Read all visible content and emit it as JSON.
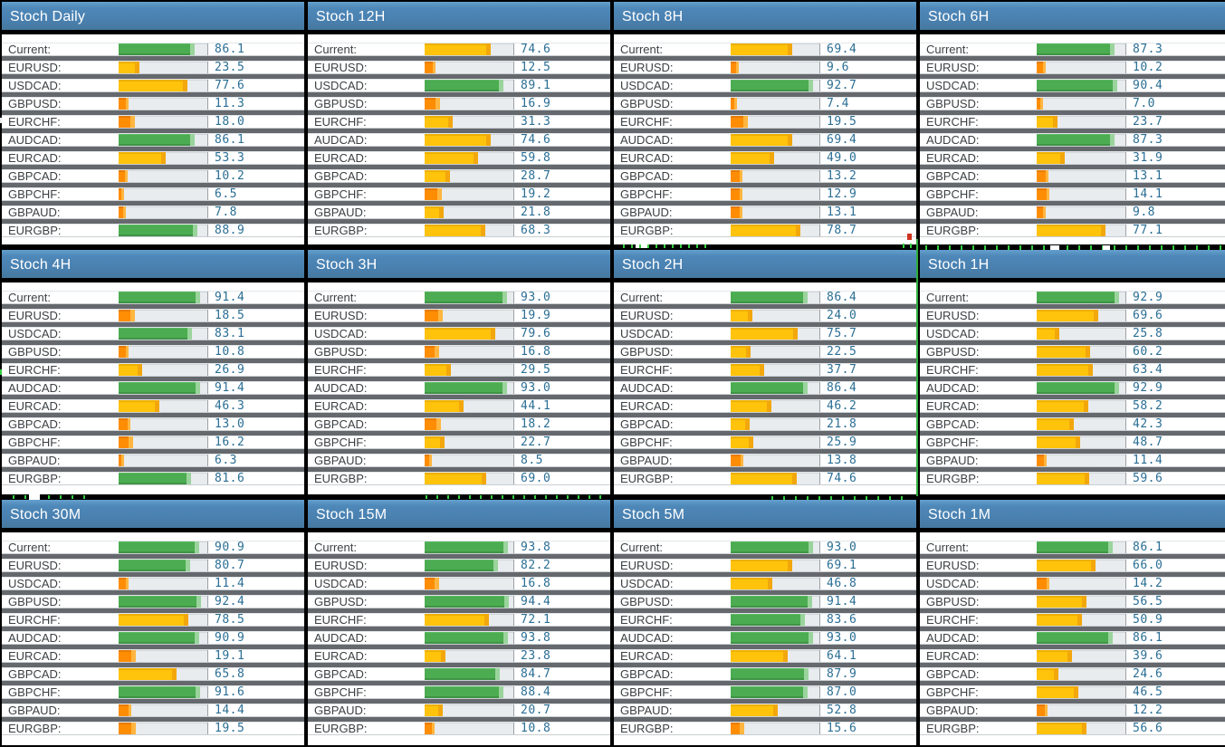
{
  "colors": {
    "header_bg": "#4A81B1",
    "bar_green": "#4CAC51",
    "bar_yellow": "#FFC30B",
    "bar_orange": "#FF8D04",
    "bar_track": "#E8ECEF",
    "row_gap_gray": "#65696D",
    "value_text": "#2A6E94",
    "label_text": "#3C4144",
    "tick_green": "#34CF40"
  },
  "panels": [
    {
      "title": "Stoch Daily",
      "rows": [
        {
          "label": "Current:",
          "value": "86.1"
        },
        {
          "label": "EURUSD:",
          "value": "23.5"
        },
        {
          "label": "USDCAD:",
          "value": "77.6"
        },
        {
          "label": "GBPUSD:",
          "value": "11.3"
        },
        {
          "label": "EURCHF:",
          "value": "18.0"
        },
        {
          "label": "AUDCAD:",
          "value": "86.1"
        },
        {
          "label": "EURCAD:",
          "value": "53.3"
        },
        {
          "label": "GBPCAD:",
          "value": "10.2"
        },
        {
          "label": "GBPCHF:",
          "value": "6.5"
        },
        {
          "label": "GBPAUD:",
          "value": "7.8"
        },
        {
          "label": "EURGBP:",
          "value": "88.9"
        }
      ]
    },
    {
      "title": "Stoch 12H",
      "rows": [
        {
          "label": "Current:",
          "value": "74.6"
        },
        {
          "label": "EURUSD:",
          "value": "12.5"
        },
        {
          "label": "USDCAD:",
          "value": "89.1"
        },
        {
          "label": "GBPUSD:",
          "value": "16.9"
        },
        {
          "label": "EURCHF:",
          "value": "31.3"
        },
        {
          "label": "AUDCAD:",
          "value": "74.6"
        },
        {
          "label": "EURCAD:",
          "value": "59.8"
        },
        {
          "label": "GBPCAD:",
          "value": "28.7"
        },
        {
          "label": "GBPCHF:",
          "value": "19.2"
        },
        {
          "label": "GBPAUD:",
          "value": "21.8"
        },
        {
          "label": "EURGBP:",
          "value": "68.3"
        }
      ]
    },
    {
      "title": "Stoch 8H",
      "rows": [
        {
          "label": "Current:",
          "value": "69.4"
        },
        {
          "label": "EURUSD:",
          "value": "9.6"
        },
        {
          "label": "USDCAD:",
          "value": "92.7"
        },
        {
          "label": "GBPUSD:",
          "value": "7.4"
        },
        {
          "label": "EURCHF:",
          "value": "19.5"
        },
        {
          "label": "AUDCAD:",
          "value": "69.4"
        },
        {
          "label": "EURCAD:",
          "value": "49.0"
        },
        {
          "label": "GBPCAD:",
          "value": "13.2"
        },
        {
          "label": "GBPCHF:",
          "value": "12.9"
        },
        {
          "label": "GBPAUD:",
          "value": "13.1"
        },
        {
          "label": "EURGBP:",
          "value": "78.7"
        }
      ]
    },
    {
      "title": "Stoch 6H",
      "rows": [
        {
          "label": "Current:",
          "value": "87.3"
        },
        {
          "label": "EURUSD:",
          "value": "10.2"
        },
        {
          "label": "USDCAD:",
          "value": "90.4"
        },
        {
          "label": "GBPUSD:",
          "value": "7.0"
        },
        {
          "label": "EURCHF:",
          "value": "23.7"
        },
        {
          "label": "AUDCAD:",
          "value": "87.3"
        },
        {
          "label": "EURCAD:",
          "value": "31.9"
        },
        {
          "label": "GBPCAD:",
          "value": "13.1"
        },
        {
          "label": "GBPCHF:",
          "value": "14.1"
        },
        {
          "label": "GBPAUD:",
          "value": "9.8"
        },
        {
          "label": "EURGBP:",
          "value": "77.1"
        }
      ]
    },
    {
      "title": "Stoch 4H",
      "rows": [
        {
          "label": "Current:",
          "value": "91.4"
        },
        {
          "label": "EURUSD:",
          "value": "18.5"
        },
        {
          "label": "USDCAD:",
          "value": "83.1"
        },
        {
          "label": "GBPUSD:",
          "value": "10.8"
        },
        {
          "label": "EURCHF:",
          "value": "26.9"
        },
        {
          "label": "AUDCAD:",
          "value": "91.4"
        },
        {
          "label": "EURCAD:",
          "value": "46.3"
        },
        {
          "label": "GBPCAD:",
          "value": "13.0"
        },
        {
          "label": "GBPCHF:",
          "value": "16.2"
        },
        {
          "label": "GBPAUD:",
          "value": "6.3"
        },
        {
          "label": "EURGBP:",
          "value": "81.6"
        }
      ]
    },
    {
      "title": "Stoch 3H",
      "rows": [
        {
          "label": "Current:",
          "value": "93.0"
        },
        {
          "label": "EURUSD:",
          "value": "19.9"
        },
        {
          "label": "USDCAD:",
          "value": "79.6"
        },
        {
          "label": "GBPUSD:",
          "value": "16.8"
        },
        {
          "label": "EURCHF:",
          "value": "29.5"
        },
        {
          "label": "AUDCAD:",
          "value": "93.0"
        },
        {
          "label": "EURCAD:",
          "value": "44.1"
        },
        {
          "label": "GBPCAD:",
          "value": "18.2"
        },
        {
          "label": "GBPCHF:",
          "value": "22.7"
        },
        {
          "label": "GBPAUD:",
          "value": "8.5"
        },
        {
          "label": "EURGBP:",
          "value": "69.0"
        }
      ]
    },
    {
      "title": "Stoch 2H",
      "rows": [
        {
          "label": "Current:",
          "value": "86.4"
        },
        {
          "label": "EURUSD:",
          "value": "24.0"
        },
        {
          "label": "USDCAD:",
          "value": "75.7"
        },
        {
          "label": "GBPUSD:",
          "value": "22.5"
        },
        {
          "label": "EURCHF:",
          "value": "37.7"
        },
        {
          "label": "AUDCAD:",
          "value": "86.4"
        },
        {
          "label": "EURCAD:",
          "value": "46.2"
        },
        {
          "label": "GBPCAD:",
          "value": "21.8"
        },
        {
          "label": "GBPCHF:",
          "value": "25.9"
        },
        {
          "label": "GBPAUD:",
          "value": "13.8"
        },
        {
          "label": "EURGBP:",
          "value": "74.6"
        }
      ]
    },
    {
      "title": "Stoch 1H",
      "rows": [
        {
          "label": "Current:",
          "value": "92.9"
        },
        {
          "label": "EURUSD:",
          "value": "69.6"
        },
        {
          "label": "USDCAD:",
          "value": "25.8"
        },
        {
          "label": "GBPUSD:",
          "value": "60.2"
        },
        {
          "label": "EURCHF:",
          "value": "63.4"
        },
        {
          "label": "AUDCAD:",
          "value": "92.9"
        },
        {
          "label": "EURCAD:",
          "value": "58.2"
        },
        {
          "label": "GBPCAD:",
          "value": "42.3"
        },
        {
          "label": "GBPCHF:",
          "value": "48.7"
        },
        {
          "label": "GBPAUD:",
          "value": "11.4"
        },
        {
          "label": "EURGBP:",
          "value": "59.6"
        }
      ]
    },
    {
      "title": "Stoch 30M",
      "rows": [
        {
          "label": "Current:",
          "value": "90.9"
        },
        {
          "label": "EURUSD:",
          "value": "80.7"
        },
        {
          "label": "USDCAD:",
          "value": "11.4"
        },
        {
          "label": "GBPUSD:",
          "value": "92.4"
        },
        {
          "label": "EURCHF:",
          "value": "78.5"
        },
        {
          "label": "AUDCAD:",
          "value": "90.9"
        },
        {
          "label": "EURCAD:",
          "value": "19.1"
        },
        {
          "label": "GBPCAD:",
          "value": "65.8"
        },
        {
          "label": "GBPCHF:",
          "value": "91.6"
        },
        {
          "label": "GBPAUD:",
          "value": "14.4"
        },
        {
          "label": "EURGBP:",
          "value": "19.5"
        }
      ]
    },
    {
      "title": "Stoch 15M",
      "rows": [
        {
          "label": "Current:",
          "value": "93.8"
        },
        {
          "label": "EURUSD:",
          "value": "82.2"
        },
        {
          "label": "USDCAD:",
          "value": "16.8"
        },
        {
          "label": "GBPUSD:",
          "value": "94.4"
        },
        {
          "label": "EURCHF:",
          "value": "72.1"
        },
        {
          "label": "AUDCAD:",
          "value": "93.8"
        },
        {
          "label": "EURCAD:",
          "value": "23.8"
        },
        {
          "label": "GBPCAD:",
          "value": "84.7"
        },
        {
          "label": "GBPCHF:",
          "value": "88.4"
        },
        {
          "label": "GBPAUD:",
          "value": "20.7"
        },
        {
          "label": "EURGBP:",
          "value": "10.8"
        }
      ]
    },
    {
      "title": "Stoch 5M",
      "rows": [
        {
          "label": "Current:",
          "value": "93.0"
        },
        {
          "label": "EURUSD:",
          "value": "69.1"
        },
        {
          "label": "USDCAD:",
          "value": "46.8"
        },
        {
          "label": "GBPUSD:",
          "value": "91.4"
        },
        {
          "label": "EURCHF:",
          "value": "83.6"
        },
        {
          "label": "AUDCAD:",
          "value": "93.0"
        },
        {
          "label": "EURCAD:",
          "value": "64.1"
        },
        {
          "label": "GBPCAD:",
          "value": "87.9"
        },
        {
          "label": "GBPCHF:",
          "value": "87.0"
        },
        {
          "label": "GBPAUD:",
          "value": "52.8"
        },
        {
          "label": "EURGBP:",
          "value": "15.6"
        }
      ]
    },
    {
      "title": "Stoch 1M",
      "rows": [
        {
          "label": "Current:",
          "value": "86.1"
        },
        {
          "label": "EURUSD:",
          "value": "66.0"
        },
        {
          "label": "USDCAD:",
          "value": "14.2"
        },
        {
          "label": "GBPUSD:",
          "value": "56.5"
        },
        {
          "label": "EURCHF:",
          "value": "50.9"
        },
        {
          "label": "AUDCAD:",
          "value": "86.1"
        },
        {
          "label": "EURCAD:",
          "value": "39.6"
        },
        {
          "label": "GBPCAD:",
          "value": "24.6"
        },
        {
          "label": "GBPCHF:",
          "value": "46.5"
        },
        {
          "label": "GBPAUD:",
          "value": "12.2"
        },
        {
          "label": "EURGBP:",
          "value": "56.6"
        }
      ]
    }
  ]
}
